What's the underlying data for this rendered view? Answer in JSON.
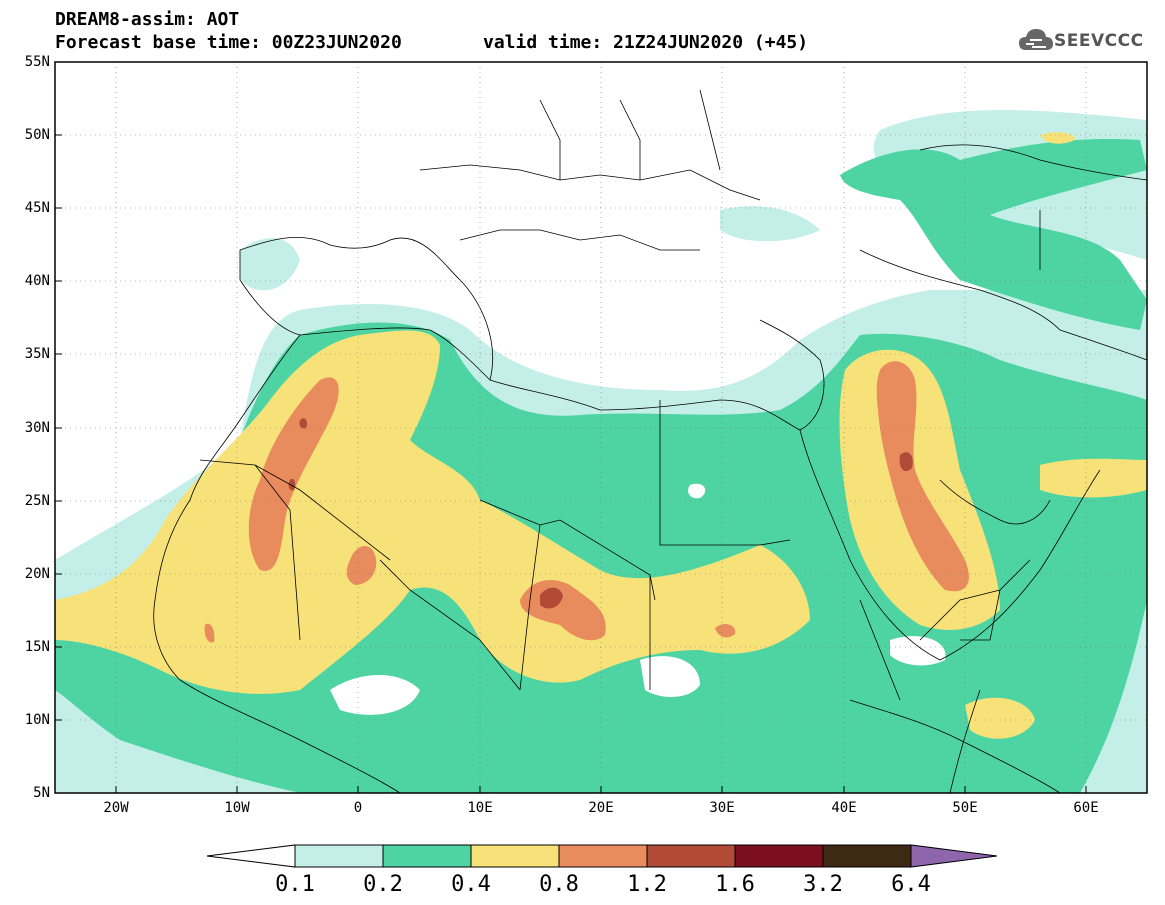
{
  "header": {
    "line1": "DREAM8-assim: AOT",
    "line2": "Forecast base time: 00Z23JUN2020",
    "line3": "valid time: 21Z24JUN2020 (+45)"
  },
  "logo": {
    "text": "SEEVCCC",
    "icon": "cloud-icon"
  },
  "axes": {
    "lat_labels": [
      "55N",
      "50N",
      "45N",
      "40N",
      "35N",
      "30N",
      "25N",
      "20N",
      "15N",
      "10N",
      "5N"
    ],
    "lon_labels": [
      "20W",
      "10W",
      "0",
      "10E",
      "20E",
      "30E",
      "40E",
      "50E",
      "60E"
    ],
    "lat_range": [
      5,
      55
    ],
    "lon_range": [
      -25,
      65
    ]
  },
  "colorbar": {
    "labels": [
      "0.1",
      "0.2",
      "0.4",
      "0.8",
      "1.2",
      "1.6",
      "3.2",
      "6.4"
    ],
    "colors": [
      "#ffffff",
      "#c4efe8",
      "#4ed4a2",
      "#f7e27a",
      "#e88c5e",
      "#b24a38",
      "#7a0d20",
      "#3e2a14",
      "#8f66ad"
    ]
  }
}
